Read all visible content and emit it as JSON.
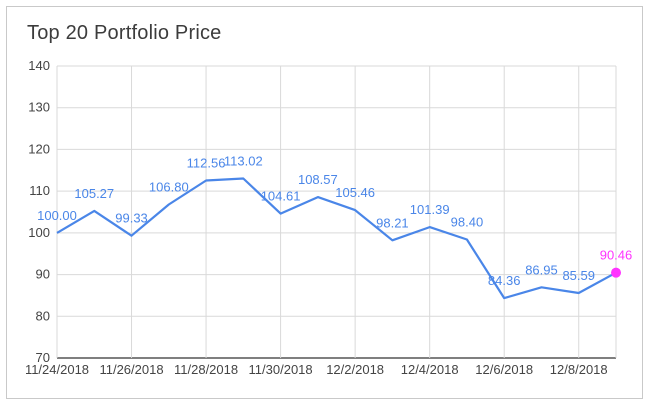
{
  "chart_data": {
    "type": "line",
    "title": "Top 20 Portfolio Price",
    "xlabel": "",
    "ylabel": "",
    "ylim": [
      70,
      140
    ],
    "yticks": [
      "70",
      "80",
      "90",
      "100",
      "110",
      "120",
      "130",
      "140"
    ],
    "xticks": [
      "11/24/2018",
      "11/26/2018",
      "11/28/2018",
      "11/30/2018",
      "12/2/2018",
      "12/4/2018",
      "12/6/2018",
      "12/8/2018"
    ],
    "grid": true,
    "x": [
      "11/24/2018",
      "11/25/2018",
      "11/26/2018",
      "11/27/2018",
      "11/28/2018",
      "11/29/2018",
      "11/30/2018",
      "12/1/2018",
      "12/2/2018",
      "12/3/2018",
      "12/4/2018",
      "12/5/2018",
      "12/6/2018",
      "12/7/2018",
      "12/8/2018",
      "12/9/2018"
    ],
    "series": [
      {
        "values": [
          100.0,
          105.27,
          99.33,
          106.8,
          112.56,
          113.02,
          104.61,
          108.57,
          105.46,
          98.21,
          101.39,
          98.4,
          84.36,
          86.95,
          85.59,
          90.46
        ],
        "labels": [
          "100.00",
          "105.27",
          "99.33",
          "106.80",
          "112.56",
          "113.02",
          "104.61",
          "108.57",
          "105.46",
          "98.21",
          "101.39",
          "98.40",
          "84.36",
          "86.95",
          "85.59",
          "90.46"
        ],
        "color": "#4a86e8",
        "highlight_color": "#ff33ff"
      }
    ]
  }
}
